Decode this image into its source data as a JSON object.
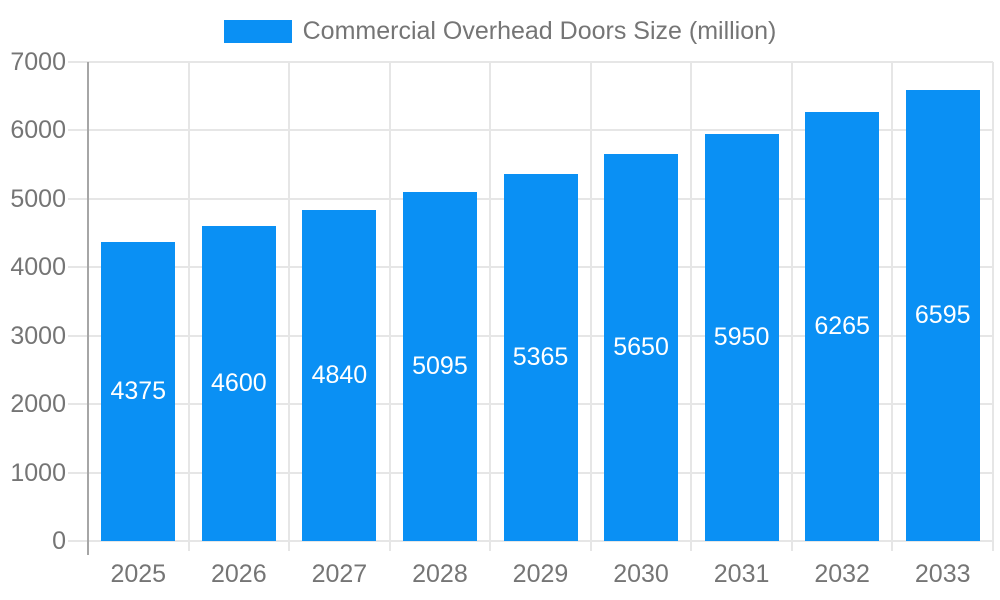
{
  "chart_data": {
    "type": "bar",
    "title": "Commercial Overhead Doors Size (million)",
    "legend": {
      "label": "Commercial Overhead Doors Size (million)",
      "position": "top-center"
    },
    "categories": [
      "2025",
      "2026",
      "2027",
      "2028",
      "2029",
      "2030",
      "2031",
      "2032",
      "2033"
    ],
    "series": [
      {
        "name": "Commercial Overhead Doors Size (million)",
        "values": [
          4375,
          4600,
          4840,
          5095,
          5365,
          5650,
          5950,
          6265,
          6595
        ]
      }
    ],
    "bar_labels": [
      "4375",
      "4600",
      "4840",
      "5095",
      "5365",
      "5650",
      "5950",
      "6265",
      "6595"
    ],
    "xlabel": "",
    "ylabel": "",
    "ylim": [
      0,
      7000
    ],
    "yticks": [
      0,
      1000,
      2000,
      3000,
      4000,
      5000,
      6000,
      7000
    ],
    "grid": true,
    "colors": {
      "bar": "#0a90f4",
      "grid": "#e6e6e6",
      "axis": "#a6a6a6",
      "text": "#757575",
      "bar_label": "#ffffff",
      "background": "#ffffff"
    }
  }
}
